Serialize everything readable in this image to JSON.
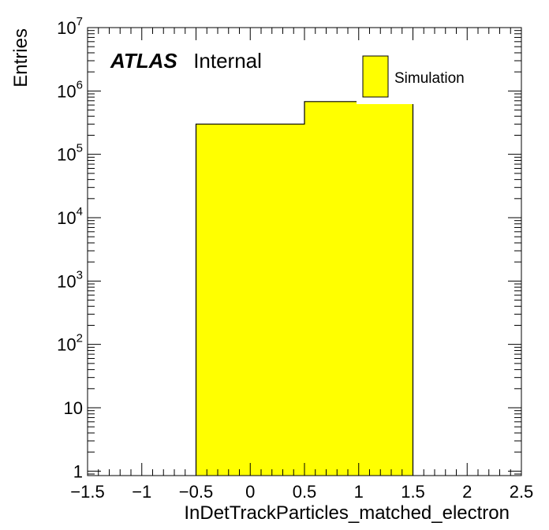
{
  "chart_data": {
    "type": "bar",
    "subtype": "histogram",
    "log_y": true,
    "bins": [
      {
        "low": -0.5,
        "high": 0.5,
        "value": 300000
      },
      {
        "low": 0.5,
        "high": 1.5,
        "value": 680000
      }
    ],
    "xlim": [
      -1.5,
      2.5
    ],
    "ylim": [
      0.85,
      10000000
    ],
    "xlabel": "InDetTrackParticles_matched_electron",
    "ylabel": "Entries",
    "x_ticks": [
      "−1.5",
      "−1",
      "−0.5",
      "0",
      "0.5",
      "1",
      "1.5",
      "2",
      "2.5"
    ],
    "y_ticks": [
      {
        "value": 1,
        "base": "1",
        "exp": ""
      },
      {
        "value": 10,
        "base": "10",
        "exp": ""
      },
      {
        "value": 100,
        "base": "10",
        "exp": "2"
      },
      {
        "value": 1000,
        "base": "10",
        "exp": "3"
      },
      {
        "value": 10000,
        "base": "10",
        "exp": "4"
      },
      {
        "value": 100000,
        "base": "10",
        "exp": "5"
      },
      {
        "value": 1000000,
        "base": "10",
        "exp": "6"
      },
      {
        "value": 10000000,
        "base": "10",
        "exp": "7"
      }
    ],
    "fill_color": "#ffff00",
    "line_color": "#000000",
    "legend": {
      "label": "Simulation",
      "position": "top-right"
    },
    "annotation": {
      "bold": "ATLAS",
      "normal": "Internal"
    },
    "grid": false
  }
}
